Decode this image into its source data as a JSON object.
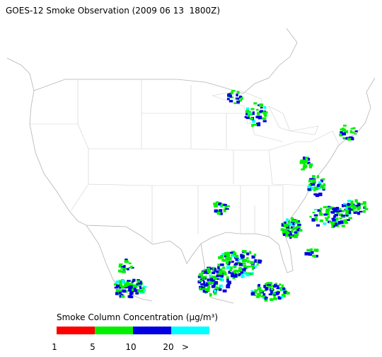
{
  "title": "GOES-12 Smoke Observation (2009 06 13  1800Z)",
  "legend": {
    "title": "Smoke Column Concentration (μg/m³)",
    "colors": [
      "#ff0000",
      "#00f000",
      "#0000e0",
      "#00ffff"
    ],
    "labels": [
      "1",
      "5",
      "10",
      "20",
      ">"
    ]
  }
}
